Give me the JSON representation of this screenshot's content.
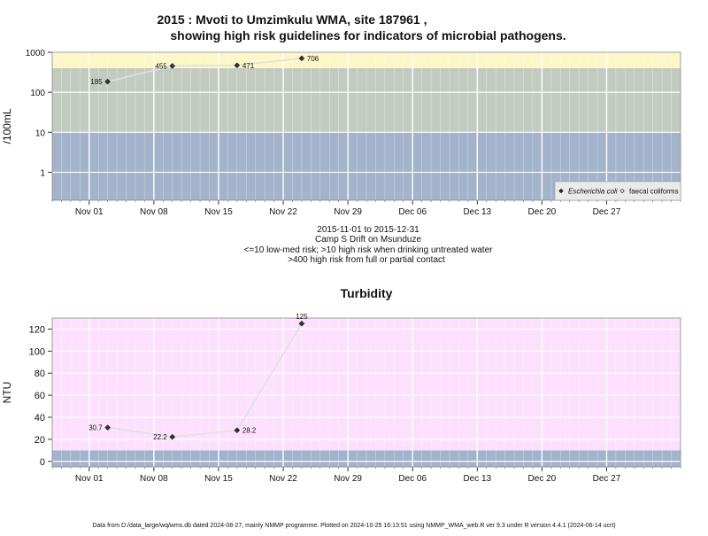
{
  "title_line1": "2015 : Mvoti to Umzimkulu WMA, site 187961 ,",
  "title_line2": "showing high risk guidelines for indicators of microbial pathogens.",
  "footer": "Data from D:/data_large/wq/wms.db dated 2024-08-27, mainly NMMP programme. Plotted on 2024-10-25 16:13:51 using NMMP_WMA_web.R ver 9.3 under R version 4.4.1 (2024-06-14 ucrt)",
  "colors": {
    "band_low": "#a3b3cb",
    "band_mid": "#c2cbc0",
    "band_high": "#fdf6c8",
    "turbidity_bg": "#fde0fd",
    "grid": "#ffffff",
    "line": "#e0e0e0",
    "marker": "#333333"
  },
  "chart_data": [
    {
      "type": "line",
      "title": "",
      "ylabel": "/100mL",
      "yscale": "log",
      "ylim": [
        0.2,
        1000
      ],
      "xlim": [
        "2015-10-28",
        "2016-01-04"
      ],
      "x_ticks": [
        {
          "date": "2015-11-01",
          "label": "Nov 01"
        },
        {
          "date": "2015-11-08",
          "label": "Nov 08"
        },
        {
          "date": "2015-11-15",
          "label": "Nov 15"
        },
        {
          "date": "2015-11-22",
          "label": "Nov 22"
        },
        {
          "date": "2015-11-29",
          "label": "Nov 29"
        },
        {
          "date": "2015-12-06",
          "label": "Dec 06"
        },
        {
          "date": "2015-12-13",
          "label": "Dec 13"
        },
        {
          "date": "2015-12-20",
          "label": "Dec 20"
        },
        {
          "date": "2015-12-27",
          "label": "Dec 27"
        }
      ],
      "y_ticks": [
        {
          "value": 1,
          "label": "1"
        },
        {
          "value": 10,
          "label": "10"
        },
        {
          "value": 100,
          "label": "100"
        },
        {
          "value": 1000,
          "label": "1000"
        }
      ],
      "bands": [
        {
          "from": 0.2,
          "to": 10,
          "color_key": "band_low"
        },
        {
          "from": 10,
          "to": 400,
          "color_key": "band_mid"
        },
        {
          "from": 400,
          "to": 1000,
          "color_key": "band_high"
        }
      ],
      "series": [
        {
          "name": "Escherichia coli",
          "marker": "filled-diamond",
          "points": [
            {
              "x": "2015-11-03",
              "y": 185,
              "label": "185",
              "label_side": "left"
            },
            {
              "x": "2015-11-10",
              "y": 455,
              "label": "455",
              "label_side": "left"
            },
            {
              "x": "2015-11-17",
              "y": 471,
              "label": "471",
              "label_side": "right"
            },
            {
              "x": "2015-11-24",
              "y": 706,
              "label": "706",
              "label_side": "right"
            }
          ]
        },
        {
          "name": "faecal coliforms",
          "marker": "open-diamond",
          "points": []
        }
      ],
      "legend_position": "bottom-right",
      "subtitle_lines": [
        "2015-11-01 to 2015-12-31",
        "Camp S Drift on Msunduze",
        "<=10 low-med risk; >10 high risk when drinking untreated water",
        ">400 high risk from full or partial contact"
      ]
    },
    {
      "type": "line",
      "title": "Turbidity",
      "ylabel": "NTU",
      "yscale": "linear",
      "ylim": [
        -5,
        130
      ],
      "xlim": [
        "2015-10-28",
        "2016-01-04"
      ],
      "x_ticks": [
        {
          "date": "2015-11-01",
          "label": "Nov 01"
        },
        {
          "date": "2015-11-08",
          "label": "Nov 08"
        },
        {
          "date": "2015-11-15",
          "label": "Nov 15"
        },
        {
          "date": "2015-11-22",
          "label": "Nov 22"
        },
        {
          "date": "2015-11-29",
          "label": "Nov 29"
        },
        {
          "date": "2015-12-06",
          "label": "Dec 06"
        },
        {
          "date": "2015-12-13",
          "label": "Dec 13"
        },
        {
          "date": "2015-12-20",
          "label": "Dec 20"
        },
        {
          "date": "2015-12-27",
          "label": "Dec 27"
        }
      ],
      "y_ticks": [
        {
          "value": 0,
          "label": "0"
        },
        {
          "value": 20,
          "label": "20"
        },
        {
          "value": 40,
          "label": "40"
        },
        {
          "value": 60,
          "label": "60"
        },
        {
          "value": 80,
          "label": "80"
        },
        {
          "value": 100,
          "label": "100"
        },
        {
          "value": 120,
          "label": "120"
        }
      ],
      "bands": [
        {
          "from": -5,
          "to": 10,
          "color_key": "band_low"
        },
        {
          "from": 10,
          "to": 130,
          "color_key": "turbidity_bg"
        }
      ],
      "series": [
        {
          "name": "",
          "marker": "filled-diamond",
          "points": [
            {
              "x": "2015-11-03",
              "y": 30.7,
              "label": "30.7",
              "label_side": "left"
            },
            {
              "x": "2015-11-10",
              "y": 22.2,
              "label": "22.2",
              "label_side": "left"
            },
            {
              "x": "2015-11-17",
              "y": 28.2,
              "label": "28.2",
              "label_side": "right"
            },
            {
              "x": "2015-11-24",
              "y": 125,
              "label": "125",
              "label_side": "top"
            }
          ]
        }
      ]
    }
  ]
}
